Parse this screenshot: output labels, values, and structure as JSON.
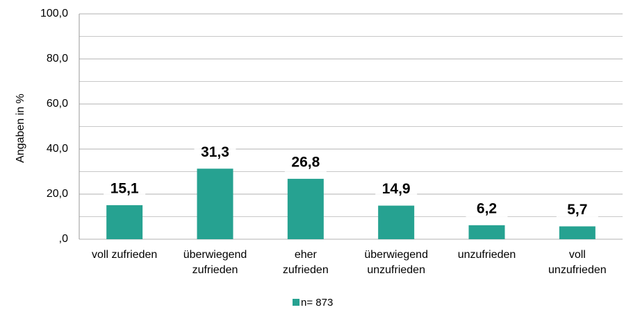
{
  "chart_data": {
    "type": "bar",
    "ylabel": "Angaben in %",
    "categories": [
      [
        "voll zufrieden"
      ],
      [
        "überwiegend",
        "zufrieden"
      ],
      [
        "eher",
        "zufrieden"
      ],
      [
        "überwiegend",
        "unzufrieden"
      ],
      [
        "unzufrieden"
      ],
      [
        "voll",
        "unzufrieden"
      ]
    ],
    "series": [
      {
        "name": "n= 873",
        "color": "#26a291",
        "values": [
          15.1,
          31.3,
          26.8,
          14.9,
          6.2,
          5.7
        ],
        "value_labels": [
          "15,1",
          "31,3",
          "26,8",
          "14,9",
          "6,2",
          "5,7"
        ]
      }
    ],
    "ylim": [
      0,
      100
    ],
    "yticks": [
      {
        "value": 0,
        "label": ",0"
      },
      {
        "value": 20,
        "label": "20,0"
      },
      {
        "value": 40,
        "label": "40,0"
      },
      {
        "value": 60,
        "label": "60,0"
      },
      {
        "value": 80,
        "label": "80,0"
      },
      {
        "value": 100,
        "label": "100,0"
      }
    ],
    "minor_yticks": [
      10,
      30,
      50,
      70,
      90
    ],
    "grid": true,
    "legend": "bottom"
  }
}
